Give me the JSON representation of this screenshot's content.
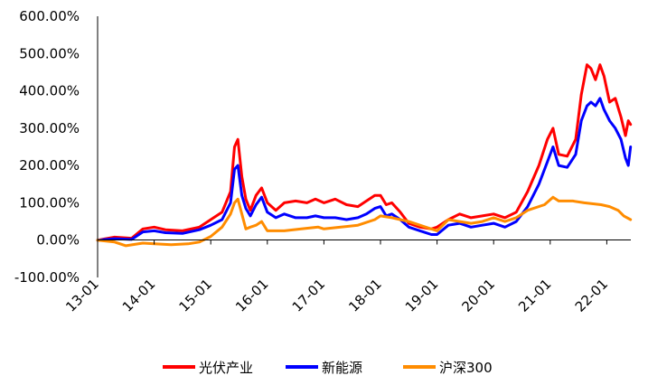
{
  "chart_data": {
    "type": "line",
    "title": "",
    "xlabel": "",
    "ylabel": "",
    "ylim": [
      -100,
      600
    ],
    "y_ticks": [
      {
        "value": -100,
        "label": "-100.00%"
      },
      {
        "value": 0,
        "label": "0.00%"
      },
      {
        "value": 100,
        "label": "100.00%"
      },
      {
        "value": 200,
        "label": "200.00%"
      },
      {
        "value": 300,
        "label": "300.00%"
      },
      {
        "value": 400,
        "label": "400.00%"
      },
      {
        "value": 500,
        "label": "500.00%"
      },
      {
        "value": 600,
        "label": "600.00%"
      }
    ],
    "x_ticks": [
      {
        "value": 2013.0,
        "label": "13-01"
      },
      {
        "value": 2014.0,
        "label": "14-01"
      },
      {
        "value": 2015.0,
        "label": "15-01"
      },
      {
        "value": 2016.0,
        "label": "16-01"
      },
      {
        "value": 2017.0,
        "label": "17-01"
      },
      {
        "value": 2018.0,
        "label": "18-01"
      },
      {
        "value": 2019.0,
        "label": "19-01"
      },
      {
        "value": 2020.0,
        "label": "20-01"
      },
      {
        "value": 2021.0,
        "label": "21-01"
      },
      {
        "value": 2022.0,
        "label": "22-01"
      }
    ],
    "xlim": [
      2013.0,
      2022.42
    ],
    "grid": false,
    "legend_position": "bottom",
    "series": [
      {
        "name": "光伏产业",
        "color": "#ff0000",
        "points": [
          [
            2013.0,
            0
          ],
          [
            2013.3,
            8
          ],
          [
            2013.6,
            5
          ],
          [
            2013.8,
            30
          ],
          [
            2014.0,
            35
          ],
          [
            2014.2,
            28
          ],
          [
            2014.5,
            25
          ],
          [
            2014.8,
            35
          ],
          [
            2015.0,
            55
          ],
          [
            2015.2,
            75
          ],
          [
            2015.35,
            130
          ],
          [
            2015.42,
            250
          ],
          [
            2015.48,
            270
          ],
          [
            2015.55,
            170
          ],
          [
            2015.62,
            110
          ],
          [
            2015.7,
            80
          ],
          [
            2015.8,
            120
          ],
          [
            2015.9,
            140
          ],
          [
            2016.0,
            100
          ],
          [
            2016.15,
            80
          ],
          [
            2016.3,
            100
          ],
          [
            2016.5,
            105
          ],
          [
            2016.7,
            100
          ],
          [
            2016.85,
            110
          ],
          [
            2017.0,
            100
          ],
          [
            2017.2,
            110
          ],
          [
            2017.4,
            95
          ],
          [
            2017.6,
            90
          ],
          [
            2017.75,
            105
          ],
          [
            2017.9,
            120
          ],
          [
            2018.0,
            120
          ],
          [
            2018.1,
            95
          ],
          [
            2018.2,
            100
          ],
          [
            2018.35,
            75
          ],
          [
            2018.5,
            45
          ],
          [
            2018.7,
            35
          ],
          [
            2018.9,
            30
          ],
          [
            2019.0,
            35
          ],
          [
            2019.2,
            55
          ],
          [
            2019.4,
            70
          ],
          [
            2019.6,
            60
          ],
          [
            2019.8,
            65
          ],
          [
            2020.0,
            70
          ],
          [
            2020.2,
            60
          ],
          [
            2020.4,
            75
          ],
          [
            2020.6,
            130
          ],
          [
            2020.8,
            200
          ],
          [
            2020.95,
            270
          ],
          [
            2021.05,
            300
          ],
          [
            2021.15,
            230
          ],
          [
            2021.3,
            225
          ],
          [
            2021.45,
            270
          ],
          [
            2021.55,
            390
          ],
          [
            2021.65,
            470
          ],
          [
            2021.72,
            460
          ],
          [
            2021.8,
            430
          ],
          [
            2021.88,
            470
          ],
          [
            2021.95,
            440
          ],
          [
            2022.05,
            370
          ],
          [
            2022.15,
            380
          ],
          [
            2022.25,
            330
          ],
          [
            2022.33,
            280
          ],
          [
            2022.38,
            320
          ],
          [
            2022.42,
            310
          ]
        ]
      },
      {
        "name": "新能源",
        "color": "#0000ff",
        "points": [
          [
            2013.0,
            0
          ],
          [
            2013.3,
            4
          ],
          [
            2013.6,
            2
          ],
          [
            2013.8,
            22
          ],
          [
            2014.0,
            25
          ],
          [
            2014.2,
            20
          ],
          [
            2014.5,
            18
          ],
          [
            2014.8,
            28
          ],
          [
            2015.0,
            40
          ],
          [
            2015.2,
            55
          ],
          [
            2015.35,
            100
          ],
          [
            2015.42,
            190
          ],
          [
            2015.48,
            200
          ],
          [
            2015.55,
            120
          ],
          [
            2015.62,
            85
          ],
          [
            2015.7,
            65
          ],
          [
            2015.8,
            95
          ],
          [
            2015.9,
            115
          ],
          [
            2016.0,
            75
          ],
          [
            2016.15,
            60
          ],
          [
            2016.3,
            70
          ],
          [
            2016.5,
            60
          ],
          [
            2016.7,
            60
          ],
          [
            2016.85,
            65
          ],
          [
            2017.0,
            60
          ],
          [
            2017.2,
            60
          ],
          [
            2017.4,
            55
          ],
          [
            2017.6,
            60
          ],
          [
            2017.75,
            70
          ],
          [
            2017.9,
            85
          ],
          [
            2018.0,
            90
          ],
          [
            2018.1,
            65
          ],
          [
            2018.2,
            70
          ],
          [
            2018.35,
            55
          ],
          [
            2018.5,
            35
          ],
          [
            2018.7,
            25
          ],
          [
            2018.9,
            15
          ],
          [
            2019.0,
            15
          ],
          [
            2019.2,
            40
          ],
          [
            2019.4,
            45
          ],
          [
            2019.6,
            35
          ],
          [
            2019.8,
            40
          ],
          [
            2020.0,
            45
          ],
          [
            2020.2,
            35
          ],
          [
            2020.4,
            50
          ],
          [
            2020.6,
            90
          ],
          [
            2020.8,
            150
          ],
          [
            2020.95,
            210
          ],
          [
            2021.05,
            250
          ],
          [
            2021.15,
            200
          ],
          [
            2021.3,
            195
          ],
          [
            2021.45,
            230
          ],
          [
            2021.55,
            320
          ],
          [
            2021.65,
            360
          ],
          [
            2021.72,
            370
          ],
          [
            2021.8,
            360
          ],
          [
            2021.88,
            380
          ],
          [
            2021.95,
            350
          ],
          [
            2022.05,
            320
          ],
          [
            2022.15,
            300
          ],
          [
            2022.25,
            270
          ],
          [
            2022.33,
            220
          ],
          [
            2022.38,
            200
          ],
          [
            2022.42,
            250
          ]
        ]
      },
      {
        "name": "沪深300",
        "color": "#ff8c00",
        "points": [
          [
            2013.0,
            0
          ],
          [
            2013.3,
            -5
          ],
          [
            2013.5,
            -15
          ],
          [
            2013.8,
            -8
          ],
          [
            2014.0,
            -10
          ],
          [
            2014.3,
            -12
          ],
          [
            2014.6,
            -10
          ],
          [
            2014.8,
            -5
          ],
          [
            2015.0,
            10
          ],
          [
            2015.2,
            35
          ],
          [
            2015.35,
            70
          ],
          [
            2015.42,
            100
          ],
          [
            2015.48,
            110
          ],
          [
            2015.55,
            70
          ],
          [
            2015.62,
            30
          ],
          [
            2015.7,
            35
          ],
          [
            2015.8,
            40
          ],
          [
            2015.9,
            50
          ],
          [
            2016.0,
            25
          ],
          [
            2016.3,
            25
          ],
          [
            2016.6,
            30
          ],
          [
            2016.9,
            35
          ],
          [
            2017.0,
            30
          ],
          [
            2017.3,
            35
          ],
          [
            2017.6,
            40
          ],
          [
            2017.9,
            55
          ],
          [
            2018.0,
            65
          ],
          [
            2018.2,
            60
          ],
          [
            2018.5,
            50
          ],
          [
            2018.8,
            35
          ],
          [
            2019.0,
            25
          ],
          [
            2019.2,
            55
          ],
          [
            2019.4,
            50
          ],
          [
            2019.6,
            45
          ],
          [
            2019.8,
            50
          ],
          [
            2020.0,
            60
          ],
          [
            2020.2,
            50
          ],
          [
            2020.4,
            60
          ],
          [
            2020.6,
            80
          ],
          [
            2020.9,
            95
          ],
          [
            2021.05,
            115
          ],
          [
            2021.15,
            105
          ],
          [
            2021.4,
            105
          ],
          [
            2021.6,
            100
          ],
          [
            2021.9,
            95
          ],
          [
            2022.05,
            90
          ],
          [
            2022.2,
            80
          ],
          [
            2022.3,
            65
          ],
          [
            2022.42,
            55
          ]
        ]
      }
    ]
  }
}
